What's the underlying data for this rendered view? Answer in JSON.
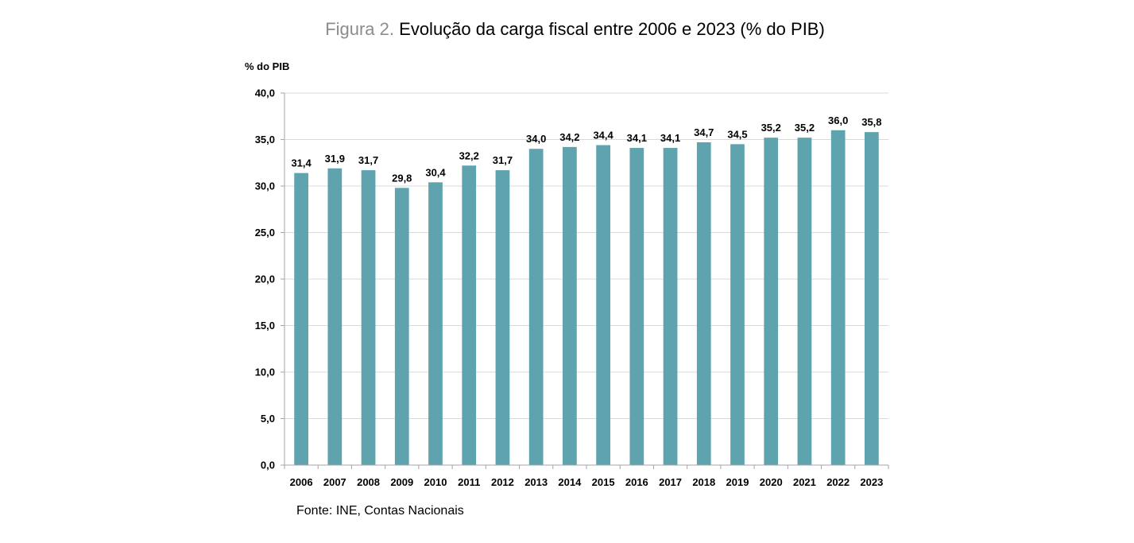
{
  "figure": {
    "title_prefix": "Figura 2.",
    "title": "Evolução da carga fiscal entre 2006 e 2023 (% do PIB)",
    "source_label": "Fonte:",
    "source_text": "INE, Contas Nacionais"
  },
  "chart_data": {
    "type": "bar",
    "title": "Evolução da carga fiscal entre 2006 e 2023 (% do PIB)",
    "ylabel": "% do PIB",
    "xlabel": "",
    "categories": [
      "2006",
      "2007",
      "2008",
      "2009",
      "2010",
      "2011",
      "2012",
      "2013",
      "2014",
      "2015",
      "2016",
      "2017",
      "2018",
      "2019",
      "2020",
      "2021",
      "2022",
      "2023"
    ],
    "values": [
      31.4,
      31.9,
      31.7,
      29.8,
      30.4,
      32.2,
      31.7,
      34.0,
      34.2,
      34.4,
      34.1,
      34.1,
      34.7,
      34.5,
      35.2,
      35.2,
      36.0,
      35.8
    ],
    "value_labels": [
      "31,4",
      "31,9",
      "31,7",
      "29,8",
      "30,4",
      "32,2",
      "31,7",
      "34,0",
      "34,2",
      "34,4",
      "34,1",
      "34,1",
      "34,7",
      "34,5",
      "35,2",
      "35,2",
      "36,0",
      "35,8"
    ],
    "ylim": [
      0,
      40
    ],
    "yticks": [
      0,
      5,
      10,
      15,
      20,
      25,
      30,
      35,
      40
    ],
    "ytick_labels": [
      "0,0",
      "5,0",
      "10,0",
      "15,0",
      "20,0",
      "25,0",
      "30,0",
      "35,0",
      "40,0"
    ],
    "grid": true,
    "bar_color": "#5fa3ae",
    "grid_color": "#d9d9d9",
    "axis_color": "#a6a6a6"
  }
}
